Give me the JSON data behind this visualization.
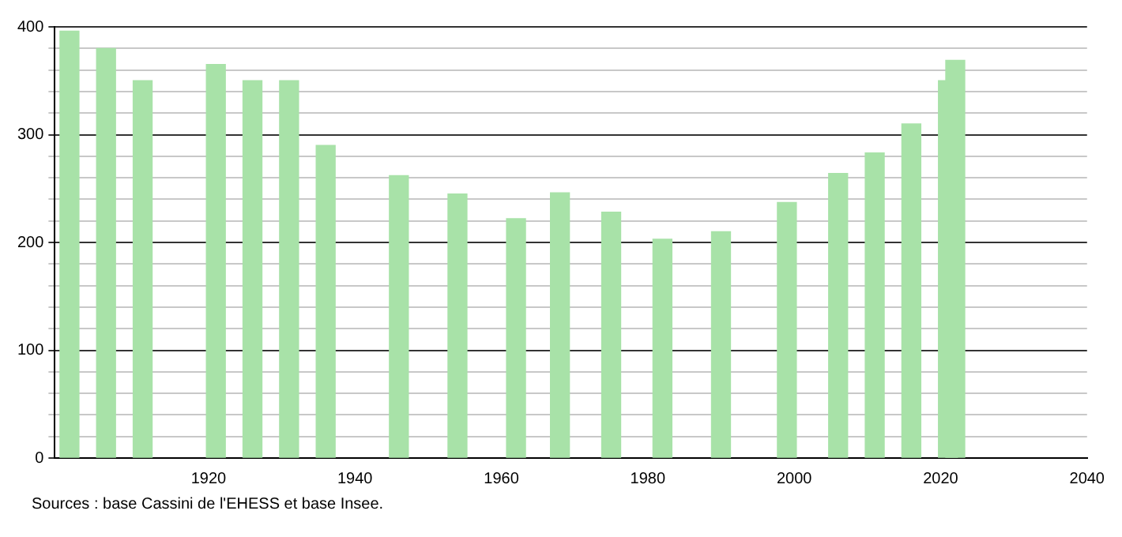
{
  "chart_data": {
    "type": "bar",
    "x": [
      1901,
      1906,
      1911,
      1921,
      1926,
      1931,
      1936,
      1946,
      1954,
      1962,
      1968,
      1975,
      1982,
      1990,
      1999,
      2006,
      2011,
      2016,
      2021,
      2022
    ],
    "values": [
      396,
      380,
      350,
      365,
      350,
      350,
      290,
      262,
      245,
      222,
      246,
      228,
      203,
      210,
      237,
      264,
      283,
      310,
      350,
      369
    ],
    "color": "#a8e2a8",
    "xlim": [
      1899,
      2040
    ],
    "xticks": [
      1920,
      1940,
      1960,
      1980,
      2000,
      2020,
      2040
    ],
    "ylim": [
      0,
      400
    ],
    "yticks": [
      0,
      {
        "value": 20,
        "label": null
      },
      {
        "value": 40,
        "label": null
      },
      {
        "value": 60,
        "label": null
      },
      {
        "value": 80,
        "label": null
      },
      100,
      {
        "value": 120,
        "label": null
      },
      {
        "value": 140,
        "label": null
      },
      {
        "value": 160,
        "label": null
      },
      {
        "value": 180,
        "label": null
      },
      200,
      {
        "value": 220,
        "label": null
      },
      {
        "value": 240,
        "label": null
      },
      {
        "value": 260,
        "label": null
      },
      {
        "value": 280,
        "label": null
      },
      300,
      {
        "value": 320,
        "label": null
      },
      {
        "value": 340,
        "label": null
      },
      {
        "value": 360,
        "label": null
      },
      {
        "value": 380,
        "label": null
      },
      400
    ],
    "grid": "y",
    "annotations": [
      "Sources : base Cassini de l'EHESS et base Insee."
    ]
  }
}
